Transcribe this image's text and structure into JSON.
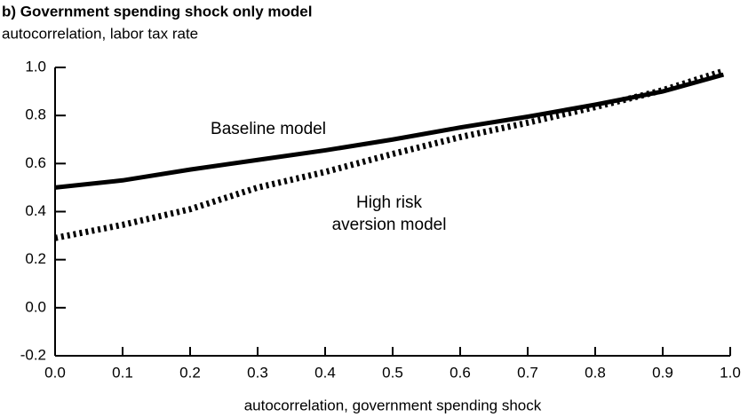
{
  "chart_data": {
    "type": "line",
    "title": "b) Government spending shock only model",
    "y_label": "autocorrelation, labor tax rate",
    "x_label": "autocorrelation, government spending shock",
    "x": [
      0,
      0.1,
      0.2,
      0.3,
      0.4,
      0.5,
      0.6,
      0.7,
      0.8,
      0.9,
      0.99
    ],
    "series": [
      {
        "color": "#000000",
        "style": "solid",
        "values": [
          0.5,
          0.53,
          0.575,
          0.615,
          0.655,
          0.7,
          0.75,
          0.795,
          0.845,
          0.9,
          0.97
        ]
      },
      {
        "color": "#000000",
        "style": "dotted",
        "values": [
          0.29,
          0.345,
          0.41,
          0.5,
          0.565,
          0.64,
          0.71,
          0.77,
          0.835,
          0.905,
          0.985
        ]
      }
    ],
    "annotations": [
      "Baseline model",
      "High risk",
      "aversion model"
    ],
    "xlim": [
      0,
      1
    ],
    "xticks": [
      {
        "value": 0,
        "label": "0.0"
      },
      0.1,
      0.2,
      0.3,
      0.4,
      0.5,
      0.6,
      0.7,
      0.8,
      0.9,
      {
        "value": 1,
        "label": "1.0"
      }
    ],
    "ylim": [
      -0.2,
      1
    ],
    "yticks": [
      -0.2,
      {
        "value": 0,
        "label": "0.0"
      },
      0.2,
      0.4,
      0.6,
      0.8,
      {
        "value": 1,
        "label": "1.0"
      }
    ],
    "grid": false
  }
}
